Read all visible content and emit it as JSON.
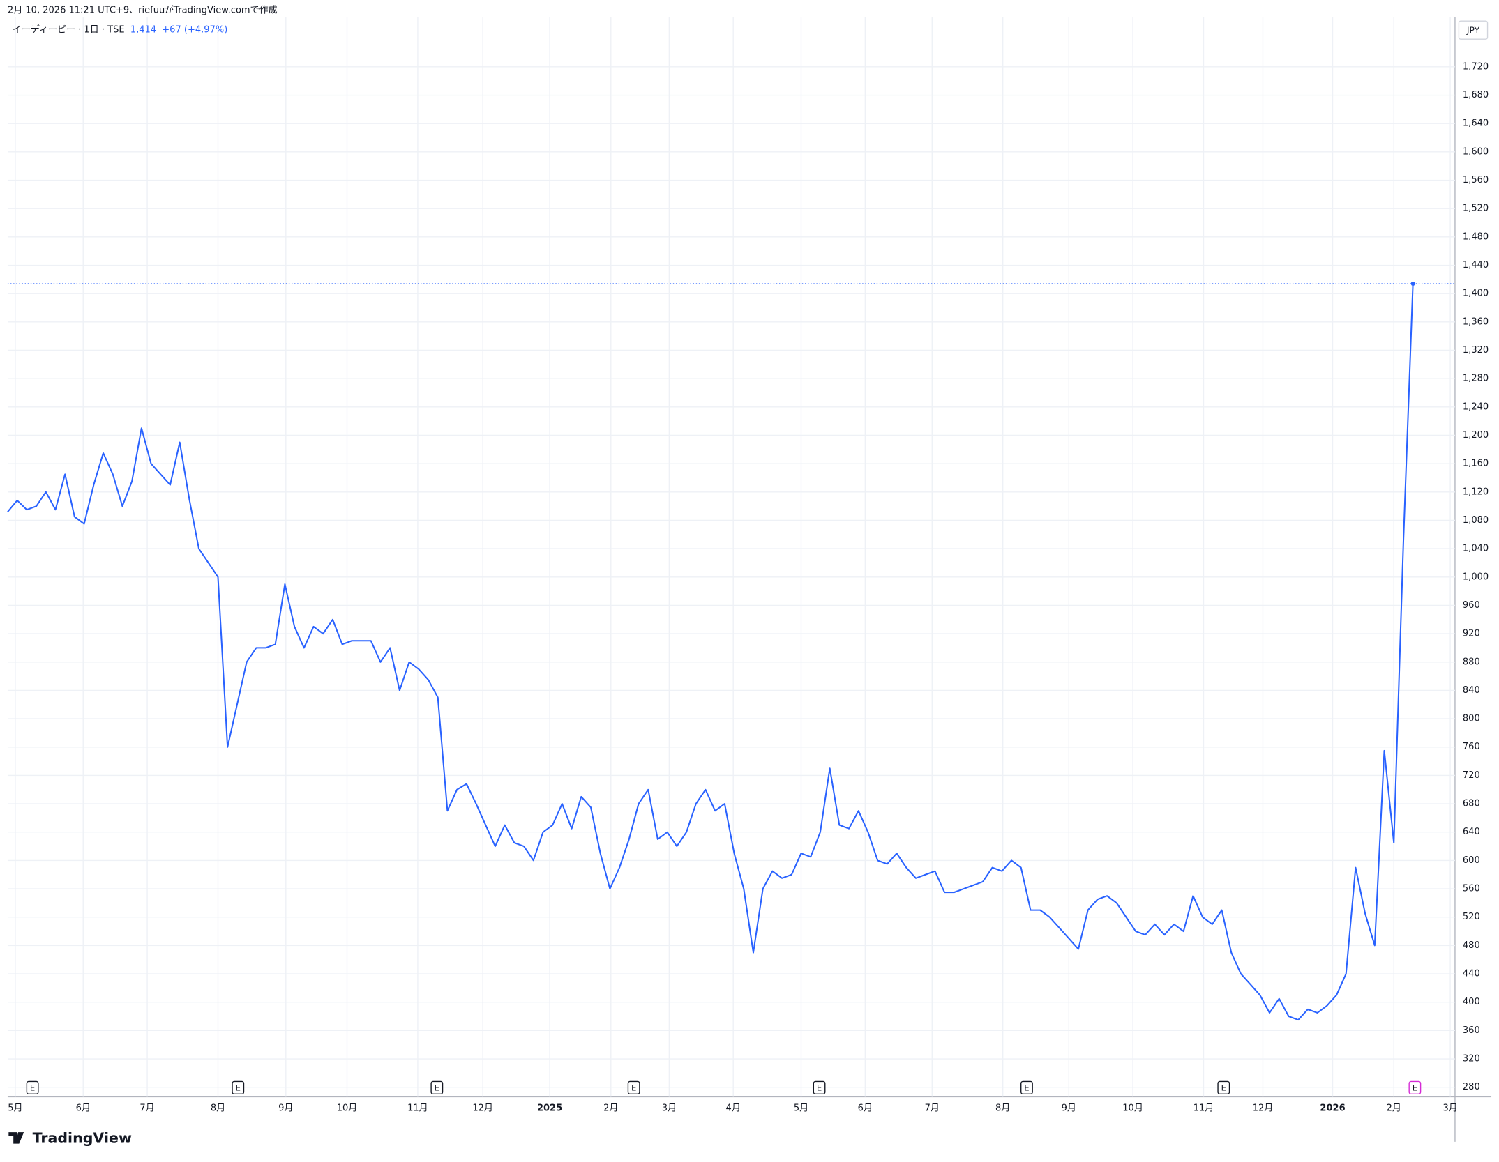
{
  "header": {
    "credit": "2月 10, 2026 11:21 UTC+9、riefuuがTradingView.comで作成",
    "symbol": "イーディーピー · 1日 · TSE",
    "last": "1,414",
    "change": "+67 (+4.97%)",
    "currency": "JPY"
  },
  "footer": {
    "brand": "TradingView"
  },
  "chart_data": {
    "type": "line",
    "color": "#2962ff",
    "grid": true,
    "values": [
      1092,
      1108,
      1095,
      1100,
      1120,
      1095,
      1145,
      1085,
      1075,
      1130,
      1175,
      1145,
      1100,
      1135,
      1210,
      1160,
      1145,
      1130,
      1190,
      1110,
      1040,
      1020,
      1000,
      760,
      820,
      880,
      900,
      900,
      905,
      990,
      930,
      900,
      930,
      920,
      940,
      905,
      910,
      910,
      910,
      880,
      900,
      840,
      880,
      870,
      855,
      830,
      670,
      700,
      708,
      680,
      650,
      620,
      650,
      625,
      620,
      600,
      640,
      650,
      680,
      645,
      690,
      675,
      610,
      560,
      590,
      630,
      680,
      700,
      630,
      640,
      620,
      640,
      680,
      700,
      670,
      680,
      610,
      560,
      470,
      560,
      585,
      575,
      580,
      610,
      605,
      640,
      730,
      650,
      645,
      670,
      640,
      600,
      595,
      610,
      590,
      575,
      580,
      585,
      555,
      555,
      560,
      565,
      570,
      590,
      585,
      600,
      590,
      530,
      530,
      520,
      505,
      490,
      475,
      530,
      545,
      550,
      540,
      520,
      500,
      495,
      510,
      495,
      510,
      500,
      550,
      520,
      510,
      530,
      470,
      440,
      425,
      410,
      385,
      405,
      380,
      375,
      390,
      385,
      395,
      410,
      440,
      590,
      525,
      480,
      755,
      625,
      1050,
      1414
    ],
    "last_price": 1414,
    "xlim": [
      0,
      151.4
    ],
    "xticks": [
      {
        "value": 0.8,
        "label": "5月"
      },
      {
        "value": 7.9,
        "label": "6月"
      },
      {
        "value": 14.6,
        "label": "7月"
      },
      {
        "value": 22,
        "label": "8月"
      },
      {
        "value": 29.1,
        "label": "9月"
      },
      {
        "value": 35.5,
        "label": "10月"
      },
      {
        "value": 42.9,
        "label": "11月"
      },
      {
        "value": 49.7,
        "label": "12月"
      },
      {
        "value": 56.7,
        "label": "2025"
      },
      {
        "value": 63.1,
        "label": "2月"
      },
      {
        "value": 69.2,
        "label": "3月"
      },
      {
        "value": 75.9,
        "label": "4月"
      },
      {
        "value": 83,
        "label": "5月"
      },
      {
        "value": 89.7,
        "label": "6月"
      },
      {
        "value": 96.7,
        "label": "7月"
      },
      {
        "value": 104.1,
        "label": "8月"
      },
      {
        "value": 111,
        "label": "9月"
      },
      {
        "value": 117.7,
        "label": "10月"
      },
      {
        "value": 125.1,
        "label": "11月"
      },
      {
        "value": 131.3,
        "label": "12月"
      },
      {
        "value": 138.6,
        "label": "2026"
      },
      {
        "value": 145,
        "label": "2月"
      },
      {
        "value": 150.9,
        "label": "3月"
      }
    ],
    "ylim": [
      266.5,
      1790
    ],
    "yticks": [
      280,
      320,
      360,
      400,
      440,
      480,
      520,
      560,
      600,
      640,
      680,
      720,
      760,
      800,
      840,
      880,
      920,
      960,
      {
        "value": 1000,
        "label": "1,000"
      },
      {
        "value": 1040,
        "label": "1,040"
      },
      {
        "value": 1080,
        "label": "1,080"
      },
      {
        "value": 1120,
        "label": "1,120"
      },
      {
        "value": 1160,
        "label": "1,160"
      },
      {
        "value": 1200,
        "label": "1,200"
      },
      {
        "value": 1240,
        "label": "1,240"
      },
      {
        "value": 1280,
        "label": "1,280"
      },
      {
        "value": 1320,
        "label": "1,320"
      },
      {
        "value": 1360,
        "label": "1,360"
      },
      {
        "value": 1400,
        "label": "1,400"
      },
      {
        "value": 1440,
        "label": "1,440"
      },
      {
        "value": 1480,
        "label": "1,480"
      },
      {
        "value": 1520,
        "label": "1,520"
      },
      {
        "value": 1560,
        "label": "1,560"
      },
      {
        "value": 1600,
        "label": "1,600"
      },
      {
        "value": 1640,
        "label": "1,640"
      },
      {
        "value": 1680,
        "label": "1,680"
      },
      {
        "value": 1720,
        "label": "1,720"
      }
    ],
    "events": [
      {
        "x": 2.6,
        "label": "E"
      },
      {
        "x": 24.1,
        "label": "E"
      },
      {
        "x": 44.9,
        "label": "E"
      },
      {
        "x": 65.5,
        "label": "E"
      },
      {
        "x": 84.9,
        "label": "E"
      },
      {
        "x": 106.6,
        "label": "E"
      },
      {
        "x": 127.2,
        "label": "E"
      },
      {
        "x": 147.2,
        "label": "E"
      }
    ]
  }
}
